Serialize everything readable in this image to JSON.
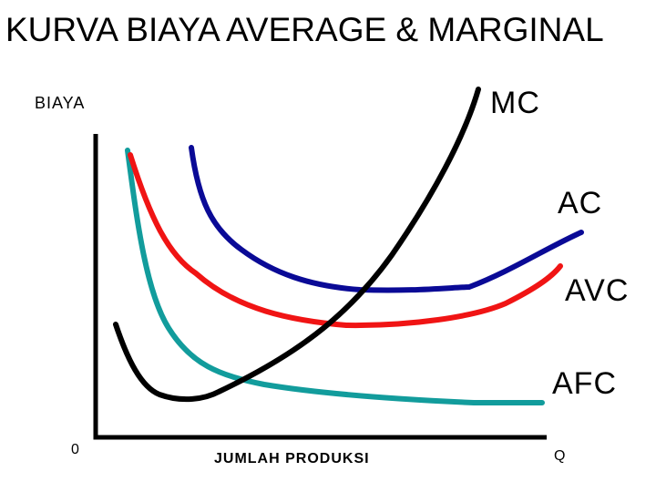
{
  "title": "KURVA BIAYA AVERAGE & MARGINAL",
  "chart_data": {
    "type": "line",
    "ylabel": "BIAYA",
    "xlabel": "JUMLAH PRODUKSI",
    "origin_label": "0",
    "x_end_label": "Q",
    "series": [
      {
        "name": "MC",
        "color": "#000000"
      },
      {
        "name": "AC",
        "color": "#0a0a96"
      },
      {
        "name": "AVC",
        "color": "#f01414"
      },
      {
        "name": "AFC",
        "color": "#129c9c"
      }
    ]
  }
}
